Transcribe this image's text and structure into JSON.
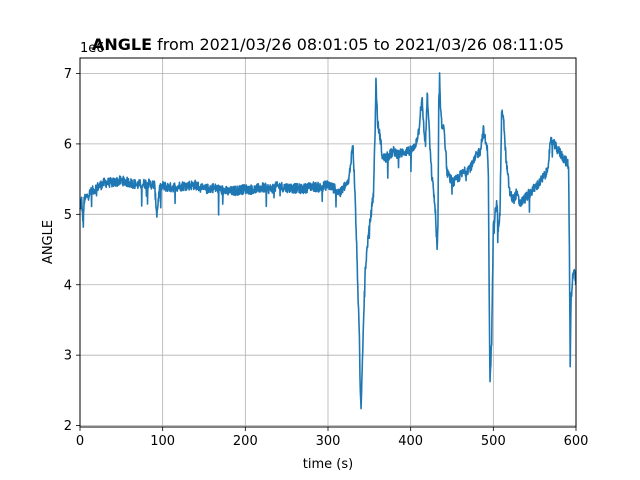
{
  "chart_data": {
    "type": "line",
    "title_bold": "ANGLE",
    "title_rest": " from 2021/03/26 08:01:05 to 2021/03/26 08:11:05",
    "xlabel": "time (s)",
    "ylabel": "ANGLE",
    "y_offset_label": "1e6",
    "xlim": [
      0,
      600
    ],
    "ylim": [
      1.98,
      7.22
    ],
    "x_ticks": [
      0,
      100,
      200,
      300,
      400,
      500,
      600
    ],
    "x_tick_labels": [
      "0",
      "100",
      "200",
      "300",
      "400",
      "500",
      "600"
    ],
    "y_ticks": [
      2,
      3,
      4,
      5,
      6,
      7
    ],
    "y_tick_labels": [
      "2",
      "3",
      "4",
      "5",
      "6",
      "7"
    ],
    "y_scale": 1000000,
    "grid": true,
    "series_color": "#1f77b4",
    "series": [
      {
        "x": [
          0,
          2,
          4,
          5,
          8,
          12,
          20,
          30,
          40,
          50,
          60,
          70,
          80,
          90,
          93,
          96,
          100,
          110,
          120,
          140,
          145,
          150,
          160,
          170,
          180,
          190,
          200,
          210,
          220,
          230,
          240,
          250,
          260,
          270,
          280,
          290,
          300,
          310,
          315,
          320,
          325,
          328,
          330,
          332,
          334,
          336,
          338,
          339,
          340,
          341,
          343,
          345,
          348,
          350,
          352,
          355,
          357,
          358,
          360,
          363,
          366,
          370,
          375,
          380,
          385,
          390,
          395,
          400,
          405,
          410,
          412,
          414,
          416,
          418,
          420,
          422,
          424,
          426,
          428,
          430,
          432,
          433,
          434,
          435,
          436,
          438,
          440,
          444,
          448,
          452,
          456,
          460,
          465,
          470,
          475,
          480,
          484,
          488,
          491,
          493,
          494,
          495,
          496,
          498,
          500,
          502,
          504,
          506,
          508,
          510,
          512,
          514,
          516,
          518,
          520,
          524,
          528,
          532,
          536,
          540,
          544,
          548,
          552,
          556,
          559,
          562,
          565,
          568,
          570,
          591,
          592,
          593,
          594,
          596,
          598,
          600
        ],
        "y": [
          5.05,
          5.2,
          4.85,
          5.2,
          5.25,
          5.3,
          5.38,
          5.45,
          5.45,
          5.48,
          5.45,
          5.42,
          5.44,
          5.42,
          5.0,
          5.35,
          5.4,
          5.38,
          5.4,
          5.42,
          5.38,
          5.35,
          5.38,
          5.35,
          5.32,
          5.34,
          5.36,
          5.35,
          5.38,
          5.36,
          5.4,
          5.38,
          5.37,
          5.36,
          5.4,
          5.38,
          5.42,
          5.35,
          5.3,
          5.4,
          5.45,
          5.8,
          6.0,
          5.5,
          4.8,
          4.0,
          3.2,
          2.5,
          2.25,
          2.7,
          3.5,
          4.2,
          4.6,
          4.8,
          5.0,
          5.3,
          6.2,
          6.9,
          6.3,
          6.1,
          5.8,
          5.8,
          5.85,
          5.9,
          5.85,
          5.88,
          5.9,
          5.9,
          5.95,
          6.2,
          6.5,
          6.6,
          6.2,
          6.0,
          6.7,
          6.3,
          5.8,
          5.5,
          5.3,
          5.0,
          4.5,
          4.8,
          6.6,
          6.95,
          6.5,
          6.2,
          6.3,
          5.6,
          5.5,
          5.45,
          5.5,
          5.55,
          5.6,
          5.65,
          5.7,
          5.85,
          5.9,
          6.2,
          6.0,
          5.9,
          5.6,
          3.8,
          2.6,
          3.2,
          4.8,
          5.0,
          5.2,
          4.8,
          5.0,
          6.4,
          6.45,
          6.0,
          5.7,
          5.5,
          5.3,
          5.2,
          5.3,
          5.15,
          5.2,
          5.25,
          5.3,
          5.35,
          5.4,
          5.45,
          5.5,
          5.55,
          5.6,
          5.9,
          6.05,
          5.7,
          4.5,
          2.9,
          3.8,
          4.1,
          4.2,
          4.0
        ]
      }
    ]
  }
}
